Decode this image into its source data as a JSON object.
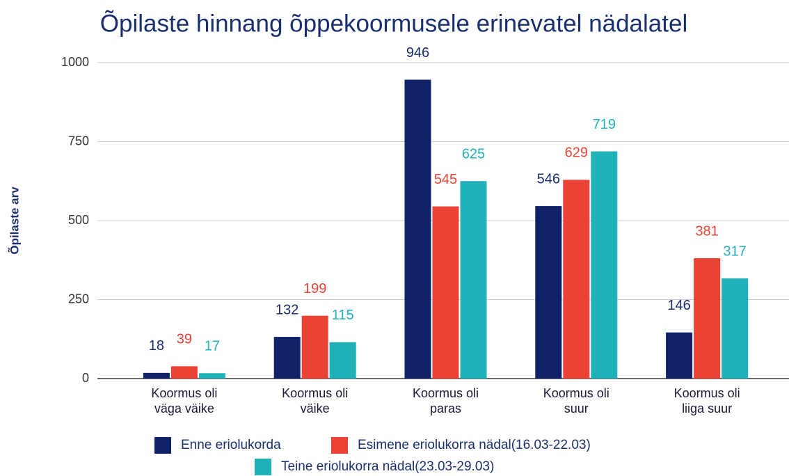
{
  "chart_data": {
    "type": "bar",
    "title": "Õpilaste hinnang õppekoormusele erinevatel nädalatel",
    "y_label": "Õpilaste arv",
    "categories": [
      "Koormus oli\nväga väike",
      "Koormus oli\nväike",
      "Koormus oli\nparas",
      "Koormus oli\nsuur",
      "Koormus oli\nliiga suur"
    ],
    "series": [
      {
        "name": "Enne eriolukorda",
        "color": "#0f2167",
        "values": [
          18,
          132,
          946,
          546,
          146
        ]
      },
      {
        "name": "Esimene eriolukorra nädal(16.03-22.03)",
        "color": "#ea4335",
        "values": [
          39,
          199,
          545,
          629,
          381
        ]
      },
      {
        "name": "Teine eriolukorra nädal(23.03-29.03)",
        "color": "#20b2b8",
        "values": [
          17,
          115,
          625,
          719,
          317
        ]
      }
    ],
    "ylim": [
      0,
      1000
    ],
    "yticks": [
      0,
      250,
      500,
      750,
      1000
    ],
    "grid": true,
    "legend": "bottom"
  }
}
